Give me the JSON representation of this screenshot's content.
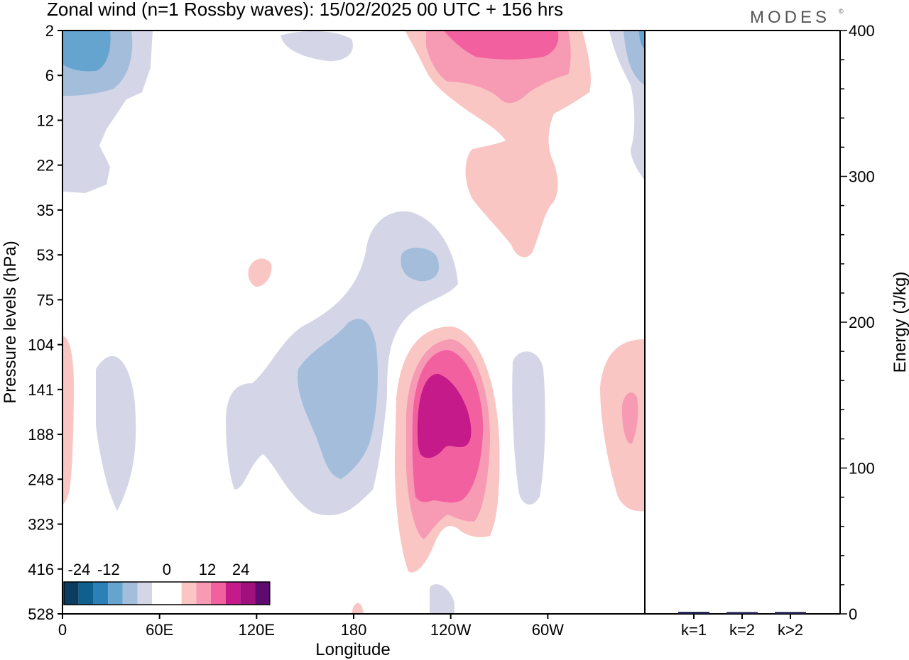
{
  "title": "Zonal wind (n=1 Rossby waves):  15/02/2025  00 UTC  + 156 hrs",
  "brand": {
    "text": "MODES",
    "mark": "©"
  },
  "chart_data": [
    {
      "type": "heatmap",
      "title": "Zonal wind (n=1 Rossby waves):  15/02/2025  00 UTC  + 156 hrs",
      "xlabel": "Longitude",
      "ylabel": "Pressure levels (hPa)",
      "x_ticks": [
        "0",
        "60E",
        "120E",
        "180",
        "120W",
        "60W"
      ],
      "x_range_deg": [
        0,
        360
      ],
      "y_ticks": [
        "2",
        "6",
        "12",
        "22",
        "35",
        "53",
        "75",
        "104",
        "141",
        "188",
        "248",
        "323",
        "416",
        "528"
      ],
      "colorbar": {
        "labels": [
          "-24",
          "-12",
          "0",
          "12",
          "24"
        ],
        "colors": [
          "#0b3d5e",
          "#0f5f8f",
          "#2b80b8",
          "#66a4d0",
          "#a3bddb",
          "#d4d6e8",
          "#ffffff",
          "#ffffff",
          "#f9c6c4",
          "#f79ab4",
          "#f2609f",
          "#c51b8a",
          "#a0117e",
          "#5e0a6e"
        ]
      },
      "contours": [
        {
          "value": -4,
          "color": "#d4d6e8",
          "regions": [
            {
              "lon": 0,
              "lev": 2
            },
            {
              "lon": 38,
              "lev": 12
            },
            {
              "lon": 25,
              "lev": 175
            },
            {
              "lon": 180,
              "lev": 4
            },
            {
              "lon": 175,
              "lev": 180
            },
            {
              "lon": 141,
              "lev": 530
            },
            {
              "lon": 286,
              "lev": 170
            },
            {
              "lon": 356,
              "lev": 10
            }
          ]
        },
        {
          "value": -8,
          "color": "#a3bddb",
          "regions": [
            {
              "lon": 30,
              "lev": 5
            },
            {
              "lon": 176,
              "lev": 170
            },
            {
              "lon": 222,
              "lev": 58
            },
            {
              "lon": 358,
              "lev": 6
            }
          ]
        },
        {
          "value": -12,
          "color": "#66a4d0",
          "regions": [
            {
              "lon": 20,
              "lev": 4
            }
          ]
        },
        {
          "value": 4,
          "color": "#f9c6c4",
          "regions": [
            {
              "lon": 250,
              "lev": 10
            },
            {
              "lon": 238,
              "lev": 180
            },
            {
              "lon": 343,
              "lev": 170
            },
            {
              "lon": 1,
              "lev": 180
            },
            {
              "lon": 122,
              "lev": 60
            },
            {
              "lon": 182,
              "lev": 520
            }
          ]
        },
        {
          "value": 8,
          "color": "#f79ab4",
          "regions": [
            {
              "lon": 248,
              "lev": 4
            },
            {
              "lon": 237,
              "lev": 175
            },
            {
              "lon": 351,
              "lev": 150
            }
          ]
        },
        {
          "value": 12,
          "color": "#f2609f",
          "regions": [
            {
              "lon": 248,
              "lev": 2
            },
            {
              "lon": 236,
              "lev": 175
            }
          ]
        },
        {
          "value": 16,
          "color": "#c51b8a",
          "regions": [
            {
              "lon": 236,
              "lev": 170
            }
          ]
        }
      ]
    },
    {
      "type": "bar",
      "categories": [
        "k=1",
        "k=2",
        "k>2"
      ],
      "values": [
        0.9,
        0.4,
        0.8
      ],
      "ylabel": "Energy (J/kg)",
      "ylim": [
        0,
        400
      ],
      "y_ticks": [
        "0",
        "100",
        "200",
        "300",
        "400"
      ]
    }
  ]
}
